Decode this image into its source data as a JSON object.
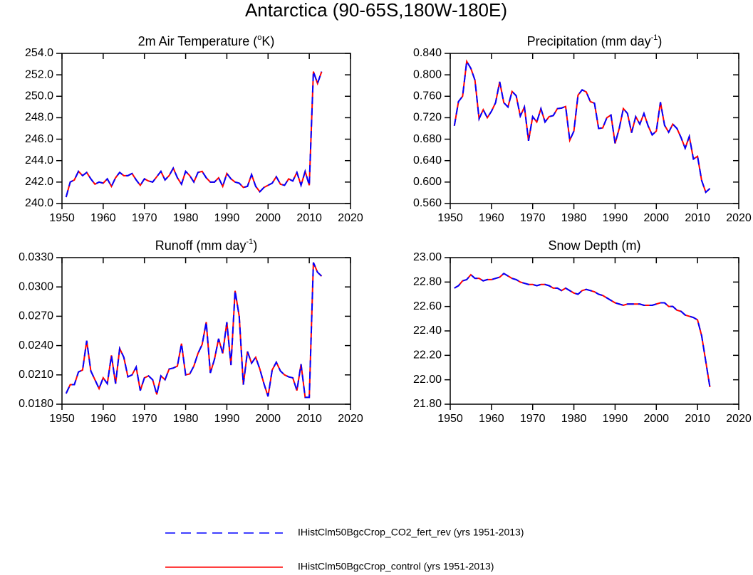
{
  "title": "Antarctica (90-65S,180W-180E)",
  "legend": {
    "position": "bottom",
    "entries": [
      {
        "name": "IHistClm50BgcCrop_CO2_fert_rev (yrs 1951-2013)",
        "color": "#0000ff",
        "dash": true
      },
      {
        "name": "IHistClm50BgcCrop_control (yrs 1951-2013)",
        "color": "#ff0000",
        "dash": false
      }
    ]
  },
  "chart_data": [
    {
      "type": "line",
      "title": [
        "2m Air Temperature (",
        "o",
        "K)"
      ],
      "x": [
        1951,
        1952,
        1953,
        1954,
        1955,
        1956,
        1957,
        1958,
        1959,
        1960,
        1961,
        1962,
        1963,
        1964,
        1965,
        1966,
        1967,
        1968,
        1969,
        1970,
        1971,
        1972,
        1973,
        1974,
        1975,
        1976,
        1977,
        1978,
        1979,
        1980,
        1981,
        1982,
        1983,
        1984,
        1985,
        1986,
        1987,
        1988,
        1989,
        1990,
        1991,
        1992,
        1993,
        1994,
        1995,
        1996,
        1997,
        1998,
        1999,
        2000,
        2001,
        2002,
        2003,
        2004,
        2005,
        2006,
        2007,
        2008,
        2009,
        2010,
        2011,
        2012,
        2013
      ],
      "series": [
        {
          "values": [
            240.6,
            242.0,
            242.2,
            243.0,
            242.6,
            242.9,
            242.3,
            241.8,
            242.0,
            241.9,
            242.3,
            241.6,
            242.4,
            242.9,
            242.6,
            242.6,
            242.8,
            242.2,
            241.7,
            242.3,
            242.1,
            242.0,
            242.5,
            243.0,
            242.2,
            242.6,
            243.3,
            242.4,
            241.8,
            243.0,
            242.6,
            242.0,
            242.9,
            243.0,
            242.4,
            242.0,
            242.0,
            242.4,
            241.6,
            242.8,
            242.3,
            242.0,
            241.9,
            241.5,
            241.6,
            242.7,
            241.6,
            241.1,
            241.5,
            241.7,
            241.9,
            242.5,
            241.8,
            241.7,
            242.3,
            242.1,
            242.9,
            241.7,
            243.0,
            241.7,
            252.3,
            251.2,
            252.3
          ]
        },
        {
          "values": [
            240.6,
            242.0,
            242.2,
            243.0,
            242.6,
            242.9,
            242.3,
            241.8,
            242.0,
            241.9,
            242.3,
            241.6,
            242.4,
            242.9,
            242.6,
            242.6,
            242.8,
            242.2,
            241.7,
            242.3,
            242.1,
            242.0,
            242.5,
            243.0,
            242.2,
            242.6,
            243.3,
            242.4,
            241.8,
            243.0,
            242.6,
            242.0,
            242.9,
            243.0,
            242.4,
            242.0,
            242.0,
            242.4,
            241.6,
            242.8,
            242.3,
            242.0,
            241.9,
            241.5,
            241.6,
            242.7,
            241.6,
            241.1,
            241.5,
            241.7,
            241.9,
            242.5,
            241.8,
            241.7,
            242.3,
            242.1,
            242.9,
            241.7,
            243.0,
            241.7,
            252.3,
            251.2,
            252.3
          ]
        }
      ],
      "xlim": [
        1950,
        2020
      ],
      "xticks": [
        1950,
        1960,
        1970,
        1980,
        1990,
        2000,
        2010,
        2020
      ],
      "ylim": [
        240,
        254
      ],
      "yticks": [
        {
          "value": 240,
          "label": "240.0"
        },
        {
          "value": 242,
          "label": "242.0"
        },
        {
          "value": 244,
          "label": "244.0"
        },
        {
          "value": 246,
          "label": "246.0"
        },
        {
          "value": 248,
          "label": "248.0"
        },
        {
          "value": 250,
          "label": "250.0"
        },
        {
          "value": 252,
          "label": "252.0"
        },
        {
          "value": 254,
          "label": "254.0"
        }
      ]
    },
    {
      "type": "line",
      "title": [
        "Precipitation (mm day",
        "-1",
        ")"
      ],
      "x": [
        1951,
        1952,
        1953,
        1954,
        1955,
        1956,
        1957,
        1958,
        1959,
        1960,
        1961,
        1962,
        1963,
        1964,
        1965,
        1966,
        1967,
        1968,
        1969,
        1970,
        1971,
        1972,
        1973,
        1974,
        1975,
        1976,
        1977,
        1978,
        1979,
        1980,
        1981,
        1982,
        1983,
        1984,
        1985,
        1986,
        1987,
        1988,
        1989,
        1990,
        1991,
        1992,
        1993,
        1994,
        1995,
        1996,
        1997,
        1998,
        1999,
        2000,
        2001,
        2002,
        2003,
        2004,
        2005,
        2006,
        2007,
        2008,
        2009,
        2010,
        2011,
        2012,
        2013
      ],
      "series": [
        {
          "values": [
            0.705,
            0.75,
            0.76,
            0.825,
            0.812,
            0.79,
            0.718,
            0.735,
            0.72,
            0.732,
            0.748,
            0.787,
            0.748,
            0.74,
            0.769,
            0.761,
            0.723,
            0.74,
            0.677,
            0.722,
            0.712,
            0.737,
            0.712,
            0.722,
            0.724,
            0.737,
            0.738,
            0.741,
            0.678,
            0.695,
            0.762,
            0.772,
            0.768,
            0.75,
            0.747,
            0.7,
            0.701,
            0.72,
            0.725,
            0.672,
            0.7,
            0.737,
            0.728,
            0.692,
            0.722,
            0.708,
            0.728,
            0.705,
            0.688,
            0.695,
            0.749,
            0.706,
            0.693,
            0.708,
            0.7,
            0.683,
            0.663,
            0.685,
            0.643,
            0.648,
            0.603,
            0.581,
            0.588
          ]
        },
        {
          "values": [
            0.705,
            0.75,
            0.76,
            0.825,
            0.812,
            0.79,
            0.718,
            0.735,
            0.72,
            0.732,
            0.748,
            0.787,
            0.748,
            0.74,
            0.769,
            0.761,
            0.723,
            0.74,
            0.677,
            0.722,
            0.712,
            0.737,
            0.712,
            0.722,
            0.724,
            0.737,
            0.738,
            0.741,
            0.678,
            0.695,
            0.762,
            0.772,
            0.768,
            0.75,
            0.747,
            0.7,
            0.701,
            0.72,
            0.725,
            0.672,
            0.7,
            0.737,
            0.728,
            0.692,
            0.722,
            0.708,
            0.728,
            0.705,
            0.688,
            0.695,
            0.749,
            0.706,
            0.693,
            0.708,
            0.7,
            0.683,
            0.663,
            0.685,
            0.643,
            0.648,
            0.603,
            0.581,
            0.588
          ]
        }
      ],
      "xlim": [
        1950,
        2020
      ],
      "xticks": [
        1950,
        1960,
        1970,
        1980,
        1990,
        2000,
        2010,
        2020
      ],
      "ylim": [
        0.56,
        0.84
      ],
      "yticks": [
        {
          "value": 0.56,
          "label": "0.560"
        },
        {
          "value": 0.6,
          "label": "0.600"
        },
        {
          "value": 0.64,
          "label": "0.640"
        },
        {
          "value": 0.68,
          "label": "0.680"
        },
        {
          "value": 0.72,
          "label": "0.720"
        },
        {
          "value": 0.76,
          "label": "0.760"
        },
        {
          "value": 0.8,
          "label": "0.800"
        },
        {
          "value": 0.84,
          "label": "0.840"
        }
      ]
    },
    {
      "type": "line",
      "title": [
        "Runoff (mm day",
        "-1",
        ")"
      ],
      "x": [
        1951,
        1952,
        1953,
        1954,
        1955,
        1956,
        1957,
        1958,
        1959,
        1960,
        1961,
        1962,
        1963,
        1964,
        1965,
        1966,
        1967,
        1968,
        1969,
        1970,
        1971,
        1972,
        1973,
        1974,
        1975,
        1976,
        1977,
        1978,
        1979,
        1980,
        1981,
        1982,
        1983,
        1984,
        1985,
        1986,
        1987,
        1988,
        1989,
        1990,
        1991,
        1992,
        1993,
        1994,
        1995,
        1996,
        1997,
        1998,
        1999,
        2000,
        2001,
        2002,
        2003,
        2004,
        2005,
        2006,
        2007,
        2008,
        2009,
        2010,
        2011,
        2012,
        2013
      ],
      "series": [
        {
          "values": [
            0.0191,
            0.02,
            0.02,
            0.0213,
            0.0215,
            0.0245,
            0.0214,
            0.0205,
            0.0196,
            0.0207,
            0.0201,
            0.023,
            0.0201,
            0.0237,
            0.0228,
            0.0208,
            0.021,
            0.0218,
            0.0194,
            0.0207,
            0.0209,
            0.0205,
            0.019,
            0.0209,
            0.0205,
            0.0216,
            0.0217,
            0.0219,
            0.0242,
            0.021,
            0.0211,
            0.0219,
            0.0232,
            0.0241,
            0.0264,
            0.0212,
            0.0226,
            0.0247,
            0.0232,
            0.0264,
            0.022,
            0.0296,
            0.027,
            0.02,
            0.0234,
            0.0222,
            0.0228,
            0.0216,
            0.0201,
            0.0188,
            0.0215,
            0.0223,
            0.0214,
            0.021,
            0.0208,
            0.0207,
            0.0194,
            0.0221,
            0.0187,
            0.0187,
            0.0325,
            0.0315,
            0.0311
          ]
        },
        {
          "values": [
            0.0191,
            0.02,
            0.02,
            0.0213,
            0.0215,
            0.0245,
            0.0214,
            0.0205,
            0.0196,
            0.0207,
            0.0201,
            0.023,
            0.0201,
            0.0237,
            0.0228,
            0.0208,
            0.021,
            0.0218,
            0.0194,
            0.0207,
            0.0209,
            0.0205,
            0.019,
            0.0209,
            0.0205,
            0.0216,
            0.0217,
            0.0219,
            0.0242,
            0.021,
            0.0211,
            0.0219,
            0.0232,
            0.0241,
            0.0264,
            0.0212,
            0.0226,
            0.0247,
            0.0232,
            0.0264,
            0.022,
            0.0296,
            0.027,
            0.02,
            0.0234,
            0.0222,
            0.0228,
            0.0216,
            0.0201,
            0.0188,
            0.0215,
            0.0223,
            0.0214,
            0.021,
            0.0208,
            0.0207,
            0.0194,
            0.0221,
            0.0187,
            0.0187,
            0.0325,
            0.0315,
            0.0311
          ]
        }
      ],
      "xlim": [
        1950,
        2020
      ],
      "xticks": [
        1950,
        1960,
        1970,
        1980,
        1990,
        2000,
        2010,
        2020
      ],
      "ylim": [
        0.018,
        0.033
      ],
      "yticks": [
        {
          "value": 0.018,
          "label": "0.0180"
        },
        {
          "value": 0.021,
          "label": "0.0210"
        },
        {
          "value": 0.024,
          "label": "0.0240"
        },
        {
          "value": 0.027,
          "label": "0.0270"
        },
        {
          "value": 0.03,
          "label": "0.0300"
        },
        {
          "value": 0.033,
          "label": "0.0330"
        }
      ]
    },
    {
      "type": "line",
      "title": [
        "Snow Depth (m)"
      ],
      "x": [
        1951,
        1952,
        1953,
        1954,
        1955,
        1956,
        1957,
        1958,
        1959,
        1960,
        1961,
        1962,
        1963,
        1964,
        1965,
        1966,
        1967,
        1968,
        1969,
        1970,
        1971,
        1972,
        1973,
        1974,
        1975,
        1976,
        1977,
        1978,
        1979,
        1980,
        1981,
        1982,
        1983,
        1984,
        1985,
        1986,
        1987,
        1988,
        1989,
        1990,
        1991,
        1992,
        1993,
        1994,
        1995,
        1996,
        1997,
        1998,
        1999,
        2000,
        2001,
        2002,
        2003,
        2004,
        2005,
        2006,
        2007,
        2008,
        2009,
        2010,
        2011,
        2012,
        2013
      ],
      "series": [
        {
          "values": [
            22.75,
            22.77,
            22.81,
            22.82,
            22.86,
            22.83,
            22.83,
            22.81,
            22.82,
            22.82,
            22.83,
            22.84,
            22.87,
            22.85,
            22.83,
            22.82,
            22.8,
            22.79,
            22.78,
            22.78,
            22.77,
            22.78,
            22.78,
            22.77,
            22.75,
            22.75,
            22.73,
            22.75,
            22.73,
            22.71,
            22.7,
            22.73,
            22.74,
            22.73,
            22.72,
            22.7,
            22.69,
            22.67,
            22.65,
            22.63,
            22.62,
            22.61,
            22.62,
            22.62,
            22.62,
            22.62,
            22.61,
            22.61,
            22.61,
            22.62,
            22.63,
            22.63,
            22.6,
            22.6,
            22.57,
            22.56,
            22.53,
            22.52,
            22.51,
            22.49,
            22.36,
            22.15,
            21.94
          ]
        },
        {
          "values": [
            22.75,
            22.77,
            22.81,
            22.82,
            22.86,
            22.83,
            22.83,
            22.81,
            22.82,
            22.82,
            22.83,
            22.84,
            22.87,
            22.85,
            22.83,
            22.82,
            22.8,
            22.79,
            22.78,
            22.78,
            22.77,
            22.78,
            22.78,
            22.77,
            22.75,
            22.75,
            22.73,
            22.75,
            22.73,
            22.71,
            22.7,
            22.73,
            22.74,
            22.73,
            22.72,
            22.7,
            22.69,
            22.67,
            22.65,
            22.63,
            22.62,
            22.61,
            22.62,
            22.62,
            22.62,
            22.62,
            22.61,
            22.61,
            22.61,
            22.62,
            22.63,
            22.63,
            22.6,
            22.6,
            22.57,
            22.56,
            22.53,
            22.52,
            22.51,
            22.49,
            22.36,
            22.15,
            21.94
          ]
        }
      ],
      "xlim": [
        1950,
        2020
      ],
      "xticks": [
        1950,
        1960,
        1970,
        1980,
        1990,
        2000,
        2010,
        2020
      ],
      "ylim": [
        21.8,
        23.0
      ],
      "yticks": [
        {
          "value": 21.8,
          "label": "21.80"
        },
        {
          "value": 22.0,
          "label": "22.00"
        },
        {
          "value": 22.2,
          "label": "22.20"
        },
        {
          "value": 22.4,
          "label": "22.40"
        },
        {
          "value": 22.6,
          "label": "22.60"
        },
        {
          "value": 22.8,
          "label": "22.80"
        },
        {
          "value": 23.0,
          "label": "23.00"
        }
      ]
    }
  ]
}
